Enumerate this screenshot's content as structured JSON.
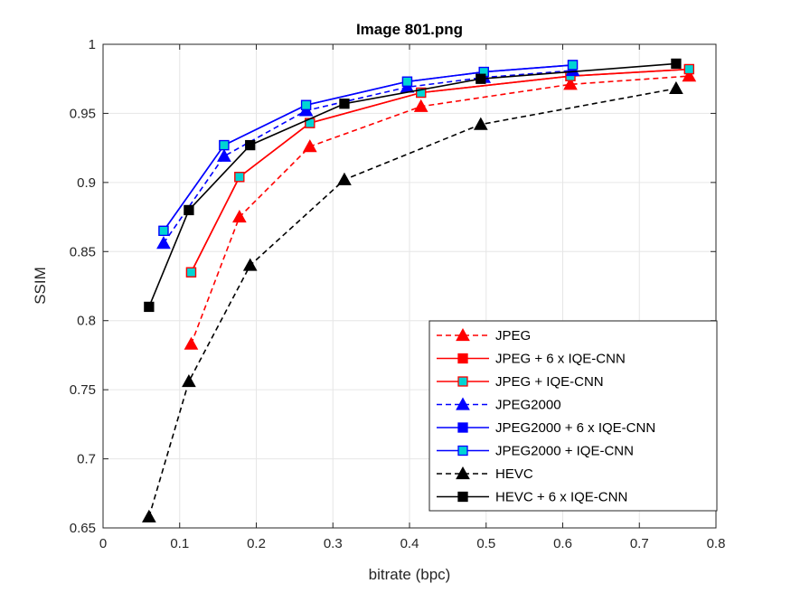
{
  "chart_data": {
    "type": "line",
    "title": "Image 801.png",
    "xlabel": "bitrate (bpc)",
    "ylabel": "SSIM",
    "xlim": [
      0,
      0.8
    ],
    "ylim": [
      0.65,
      1
    ],
    "xticks": [
      0,
      0.1,
      0.2,
      0.3,
      0.4,
      0.5,
      0.6,
      0.7,
      0.8
    ],
    "xtick_labels": [
      "0",
      "0.1",
      "0.2",
      "0.3",
      "0.4",
      "0.5",
      "0.6",
      "0.7",
      "0.8"
    ],
    "yticks": [
      0.65,
      0.7,
      0.75,
      0.8,
      0.85,
      0.9,
      0.95,
      1
    ],
    "ytick_labels": [
      "0.65",
      "0.7",
      "0.75",
      "0.8",
      "0.85",
      "0.9",
      "0.95",
      "1"
    ],
    "grid": true,
    "legend_position": "bottom-right",
    "series": [
      {
        "name": "JPEG",
        "color": "#ff0000",
        "dash": "dashed",
        "marker": "triangle",
        "marker_fill": "#ff0000",
        "points": [
          [
            0.115,
            0.783
          ],
          [
            0.178,
            0.875
          ],
          [
            0.27,
            0.926
          ],
          [
            0.415,
            0.955
          ],
          [
            0.61,
            0.971
          ],
          [
            0.765,
            0.977
          ]
        ]
      },
      {
        "name": "JPEG + 6 x IQE-CNN",
        "color": "#ff0000",
        "dash": "solid",
        "marker": "square",
        "marker_fill": "#ff0000",
        "points": [
          [
            0.115,
            0.835
          ],
          [
            0.178,
            0.904
          ],
          [
            0.27,
            0.943
          ],
          [
            0.415,
            0.965
          ],
          [
            0.61,
            0.977
          ],
          [
            0.765,
            0.982
          ]
        ]
      },
      {
        "name": "JPEG + IQE-CNN",
        "color": "#ff0000",
        "dash": "solid",
        "marker": "square",
        "marker_fill": "#00d4d4",
        "points": [
          [
            0.115,
            0.835
          ],
          [
            0.178,
            0.904
          ],
          [
            0.27,
            0.943
          ],
          [
            0.415,
            0.965
          ],
          [
            0.61,
            0.977
          ],
          [
            0.765,
            0.982
          ]
        ]
      },
      {
        "name": "JPEG2000",
        "color": "#0000ff",
        "dash": "dashed",
        "marker": "triangle",
        "marker_fill": "#0000ff",
        "points": [
          [
            0.079,
            0.856
          ],
          [
            0.158,
            0.919
          ],
          [
            0.265,
            0.952
          ],
          [
            0.397,
            0.969
          ],
          [
            0.497,
            0.976
          ],
          [
            0.613,
            0.981
          ]
        ]
      },
      {
        "name": "JPEG2000 + 6 x IQE-CNN",
        "color": "#0000ff",
        "dash": "solid",
        "marker": "square",
        "marker_fill": "#0000ff",
        "points": [
          [
            0.079,
            0.865
          ],
          [
            0.158,
            0.927
          ],
          [
            0.265,
            0.956
          ],
          [
            0.397,
            0.973
          ],
          [
            0.497,
            0.98
          ],
          [
            0.613,
            0.985
          ]
        ]
      },
      {
        "name": "JPEG2000 + IQE-CNN",
        "color": "#0000ff",
        "dash": "solid",
        "marker": "square",
        "marker_fill": "#00d4d4",
        "points": [
          [
            0.079,
            0.865
          ],
          [
            0.158,
            0.927
          ],
          [
            0.265,
            0.956
          ],
          [
            0.397,
            0.973
          ],
          [
            0.497,
            0.98
          ],
          [
            0.613,
            0.985
          ]
        ]
      },
      {
        "name": "HEVC",
        "color": "#000000",
        "dash": "dashed",
        "marker": "triangle",
        "marker_fill": "#000000",
        "points": [
          [
            0.06,
            0.658
          ],
          [
            0.112,
            0.756
          ],
          [
            0.192,
            0.84
          ],
          [
            0.315,
            0.902
          ],
          [
            0.493,
            0.942
          ],
          [
            0.748,
            0.968
          ]
        ]
      },
      {
        "name": "HEVC + 6 x IQE-CNN",
        "color": "#000000",
        "dash": "solid",
        "marker": "square",
        "marker_fill": "#000000",
        "points": [
          [
            0.06,
            0.81
          ],
          [
            0.112,
            0.88
          ],
          [
            0.192,
            0.927
          ],
          [
            0.315,
            0.957
          ],
          [
            0.493,
            0.975
          ],
          [
            0.748,
            0.986
          ]
        ]
      }
    ]
  }
}
